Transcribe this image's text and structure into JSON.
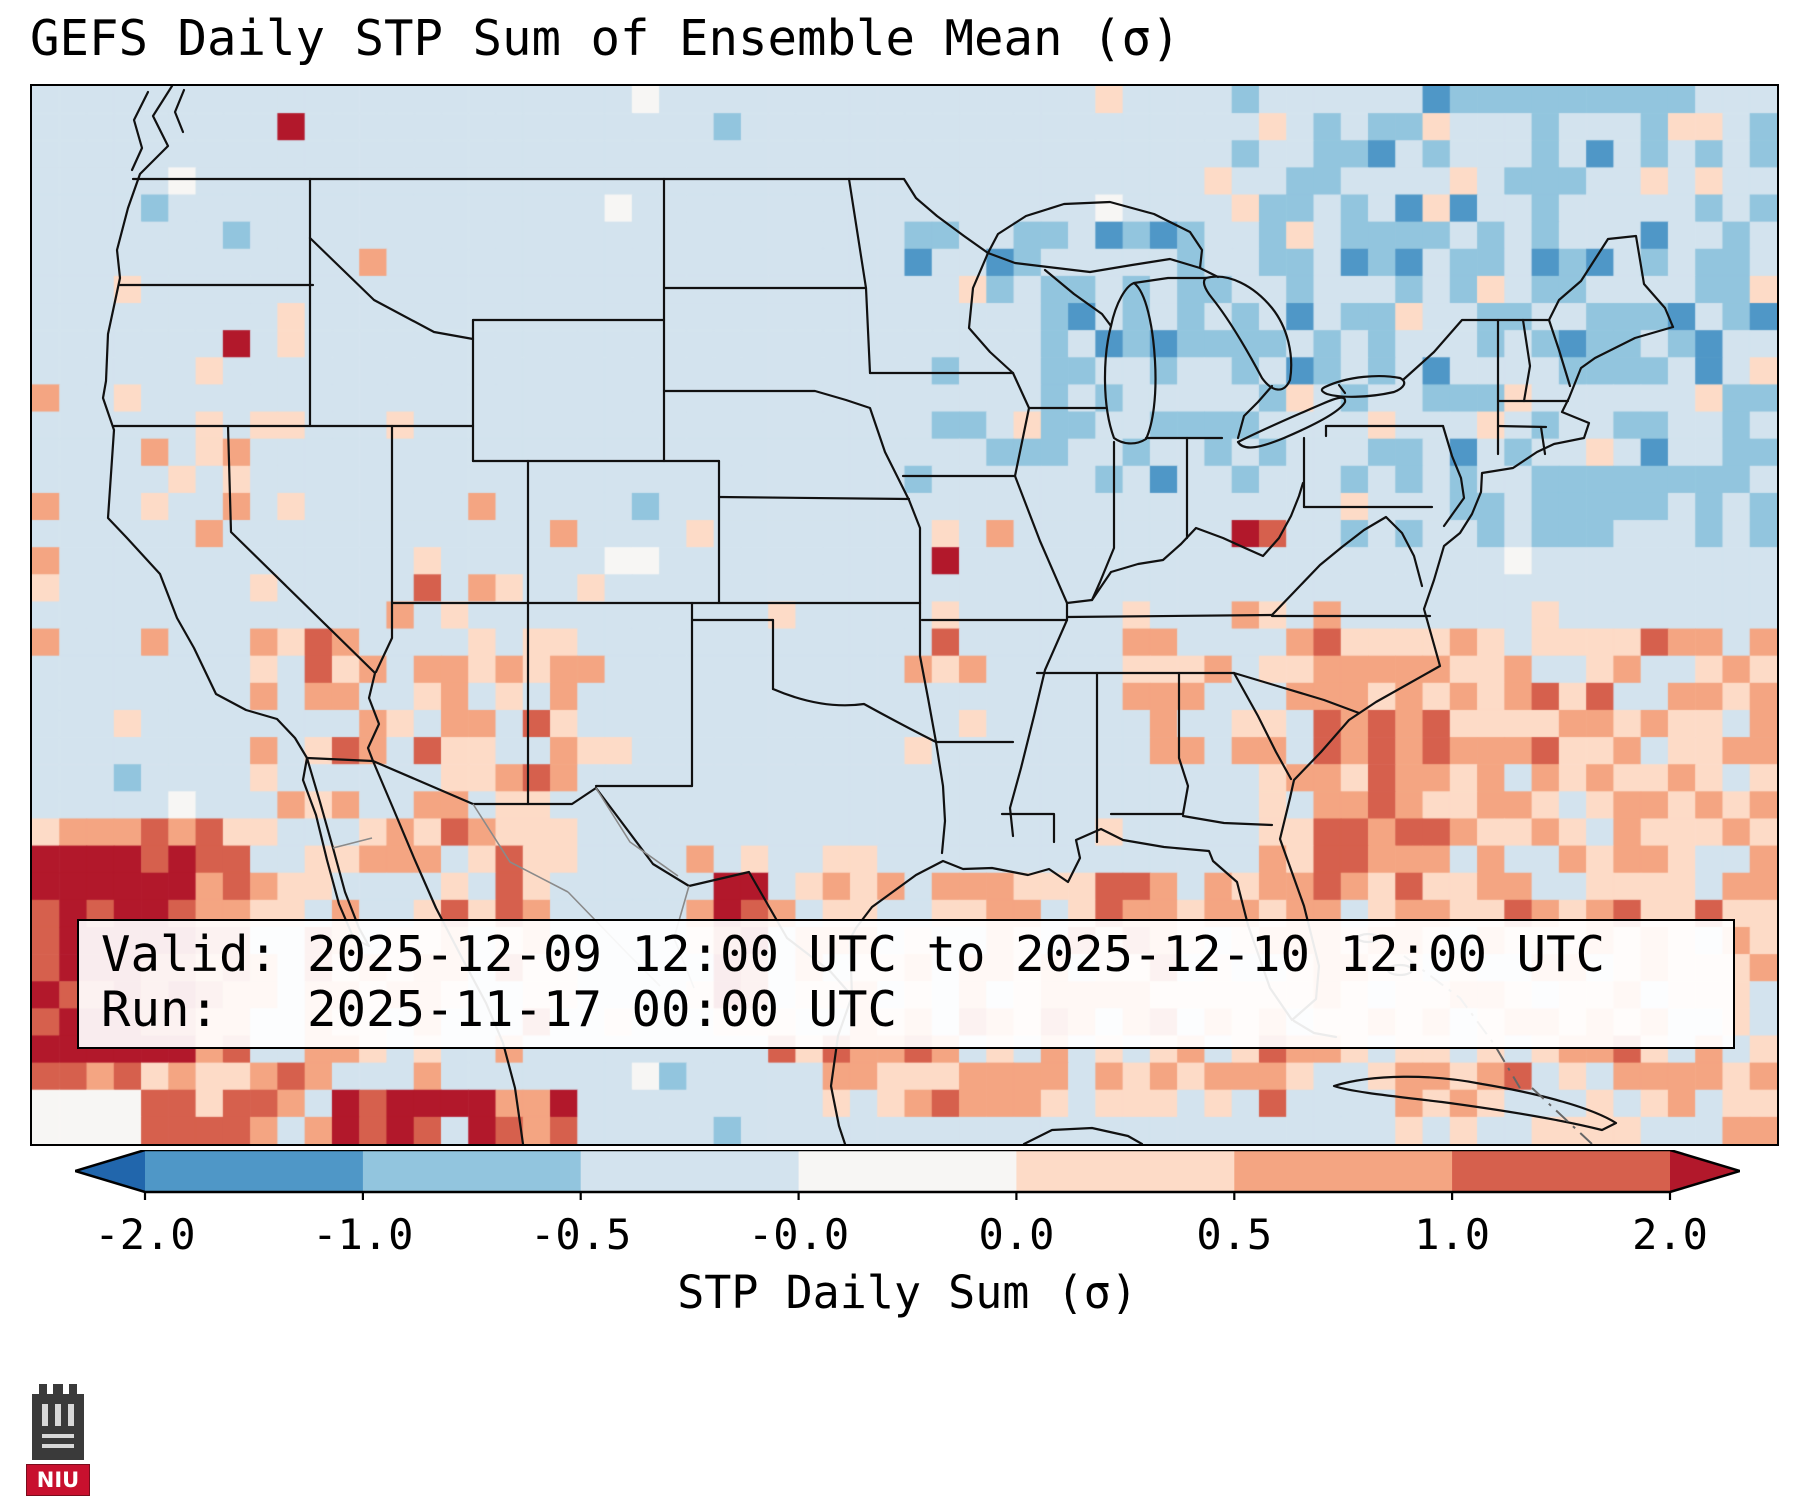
{
  "title": "GEFS Daily STP Sum of Ensemble Mean (σ)",
  "info_box": {
    "valid_label": "Valid:",
    "valid_value": "2025-12-09 12:00 UTC to 2025-12-10 12:00 UTC",
    "run_label": "Run:",
    "run_value": "2025-11-17 00:00 UTC"
  },
  "colorbar": {
    "label": "STP Daily Sum (σ)",
    "ticks": [
      "-2.0",
      "-1.0",
      "-0.5",
      "-0.0",
      "0.0",
      "0.5",
      "1.0",
      "2.0"
    ],
    "segment_colors": [
      "#4f97c7",
      "#92c5de",
      "#d3e3ee",
      "#f7f6f4",
      "#fddbc7",
      "#f4a582",
      "#d6604d"
    ],
    "under_color": "#2166ac",
    "over_color": "#b2182b"
  },
  "map": {
    "border_color": "#000000",
    "state_line_color": "#111111",
    "mexico_state_line_color": "#8a8a8a",
    "palette": {
      "under": "#2166ac",
      "b1": "#4f97c7",
      "b2": "#92c5de",
      "base": "#d3e3ee",
      "white": "#f7f6f4",
      "o1": "#fddbc7",
      "o2": "#f4a582",
      "red": "#d6604d",
      "over": "#b2182b"
    }
  },
  "logo": {
    "text": "NIU",
    "banner_color": "#c8102e"
  },
  "chart_data": {
    "type": "heatmap",
    "title": "GEFS Daily STP Sum of Ensemble Mean (σ)",
    "variable": "STP Daily Sum (σ)",
    "valid": "2025-12-09 12:00 UTC to 2025-12-10 12:00 UTC",
    "run": "2025-11-17 00:00 UTC",
    "colorbar": {
      "boundaries": [
        -2.0,
        -1.0,
        -0.5,
        -0.0,
        0.0,
        0.5,
        1.0,
        2.0
      ],
      "extend": "both",
      "colors": [
        "#2166ac",
        "#4f97c7",
        "#92c5de",
        "#d3e3ee",
        "#f7f6f4",
        "#fddbc7",
        "#f4a582",
        "#d6604d",
        "#b2182b"
      ]
    },
    "region": "Contiguous United States, southern Canada, Mexico, Gulf of Mexico and western Atlantic",
    "notable_anomalies": [
      "Strong positive anomaly (>2σ) over the Pacific southwest of Baja California",
      "Positive anomaly (>2σ) along the south Texas coast",
      "Broad weak positive anomalies (0 to 1σ) across the Gulf of Mexico, Southeast US and western Atlantic",
      "Isolated >1σ cells over Virginia, Missouri, Nevada and northern Mexico",
      "Weak negative anomalies (-1 to 0σ) around the Great Lakes and the Northeast US"
    ]
  }
}
